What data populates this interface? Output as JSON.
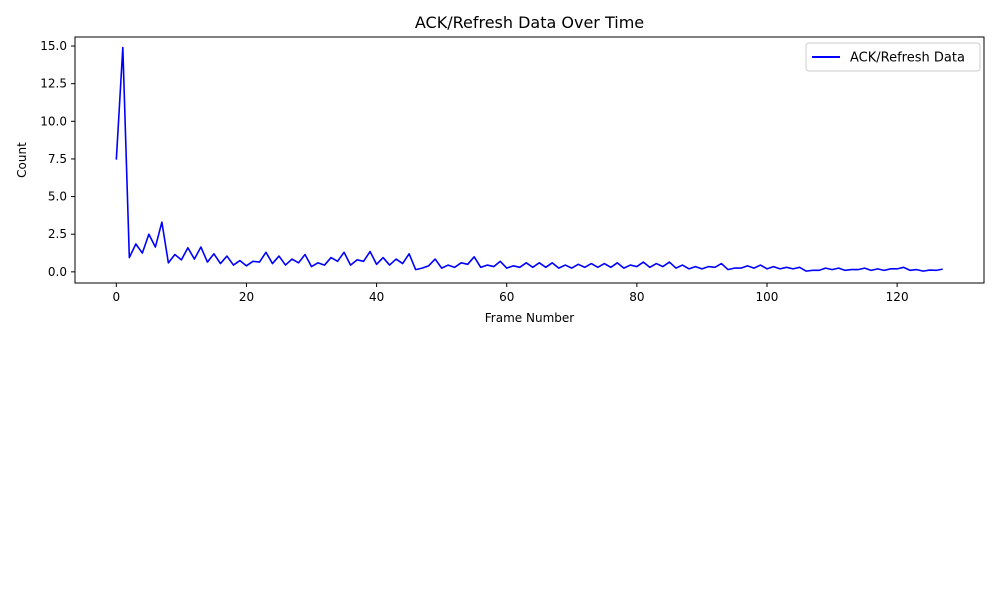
{
  "chart_data": {
    "type": "line",
    "title": "ACK/Refresh Data Over Time",
    "xlabel": "Frame Number",
    "ylabel": "Count",
    "xlim": [
      -6.35,
      133.35
    ],
    "ylim": [
      -0.74,
      15.6
    ],
    "x_ticks": [
      0,
      20,
      40,
      60,
      80,
      100,
      120
    ],
    "x_tick_labels": [
      "0",
      "20",
      "40",
      "60",
      "80",
      "100",
      "120"
    ],
    "y_ticks": [
      0.0,
      2.5,
      5.0,
      7.5,
      10.0,
      12.5,
      15.0
    ],
    "y_tick_labels": [
      "0.0",
      "2.5",
      "5.0",
      "7.5",
      "10.0",
      "12.5",
      "15.0"
    ],
    "grid": false,
    "legend": {
      "position": "top-right",
      "entries": [
        "ACK/Refresh Data"
      ]
    },
    "series": [
      {
        "name": "ACK/Refresh Data",
        "color": "#0000ff",
        "x_start": 0,
        "x_step": 1,
        "values": [
          7.45,
          14.9,
          0.95,
          1.85,
          1.25,
          2.5,
          1.65,
          3.3,
          0.6,
          1.15,
          0.8,
          1.6,
          0.85,
          1.65,
          0.65,
          1.2,
          0.55,
          1.05,
          0.45,
          0.75,
          0.4,
          0.7,
          0.65,
          1.3,
          0.55,
          1.05,
          0.45,
          0.85,
          0.6,
          1.15,
          0.35,
          0.6,
          0.45,
          0.95,
          0.7,
          1.3,
          0.45,
          0.8,
          0.7,
          1.35,
          0.5,
          0.95,
          0.45,
          0.85,
          0.55,
          1.2,
          0.15,
          0.25,
          0.4,
          0.85,
          0.25,
          0.45,
          0.3,
          0.6,
          0.5,
          1.0,
          0.3,
          0.45,
          0.35,
          0.7,
          0.25,
          0.4,
          0.3,
          0.6,
          0.3,
          0.6,
          0.3,
          0.6,
          0.25,
          0.45,
          0.25,
          0.5,
          0.3,
          0.55,
          0.3,
          0.55,
          0.3,
          0.6,
          0.25,
          0.45,
          0.35,
          0.65,
          0.3,
          0.55,
          0.35,
          0.65,
          0.25,
          0.45,
          0.2,
          0.35,
          0.2,
          0.35,
          0.3,
          0.55,
          0.15,
          0.25,
          0.25,
          0.4,
          0.25,
          0.45,
          0.2,
          0.35,
          0.2,
          0.3,
          0.2,
          0.3,
          0.05,
          0.1,
          0.1,
          0.25,
          0.15,
          0.25,
          0.1,
          0.15,
          0.15,
          0.25,
          0.1,
          0.2,
          0.1,
          0.2,
          0.2,
          0.3,
          0.1,
          0.15,
          0.05,
          0.12,
          0.1,
          0.18
        ]
      }
    ]
  }
}
